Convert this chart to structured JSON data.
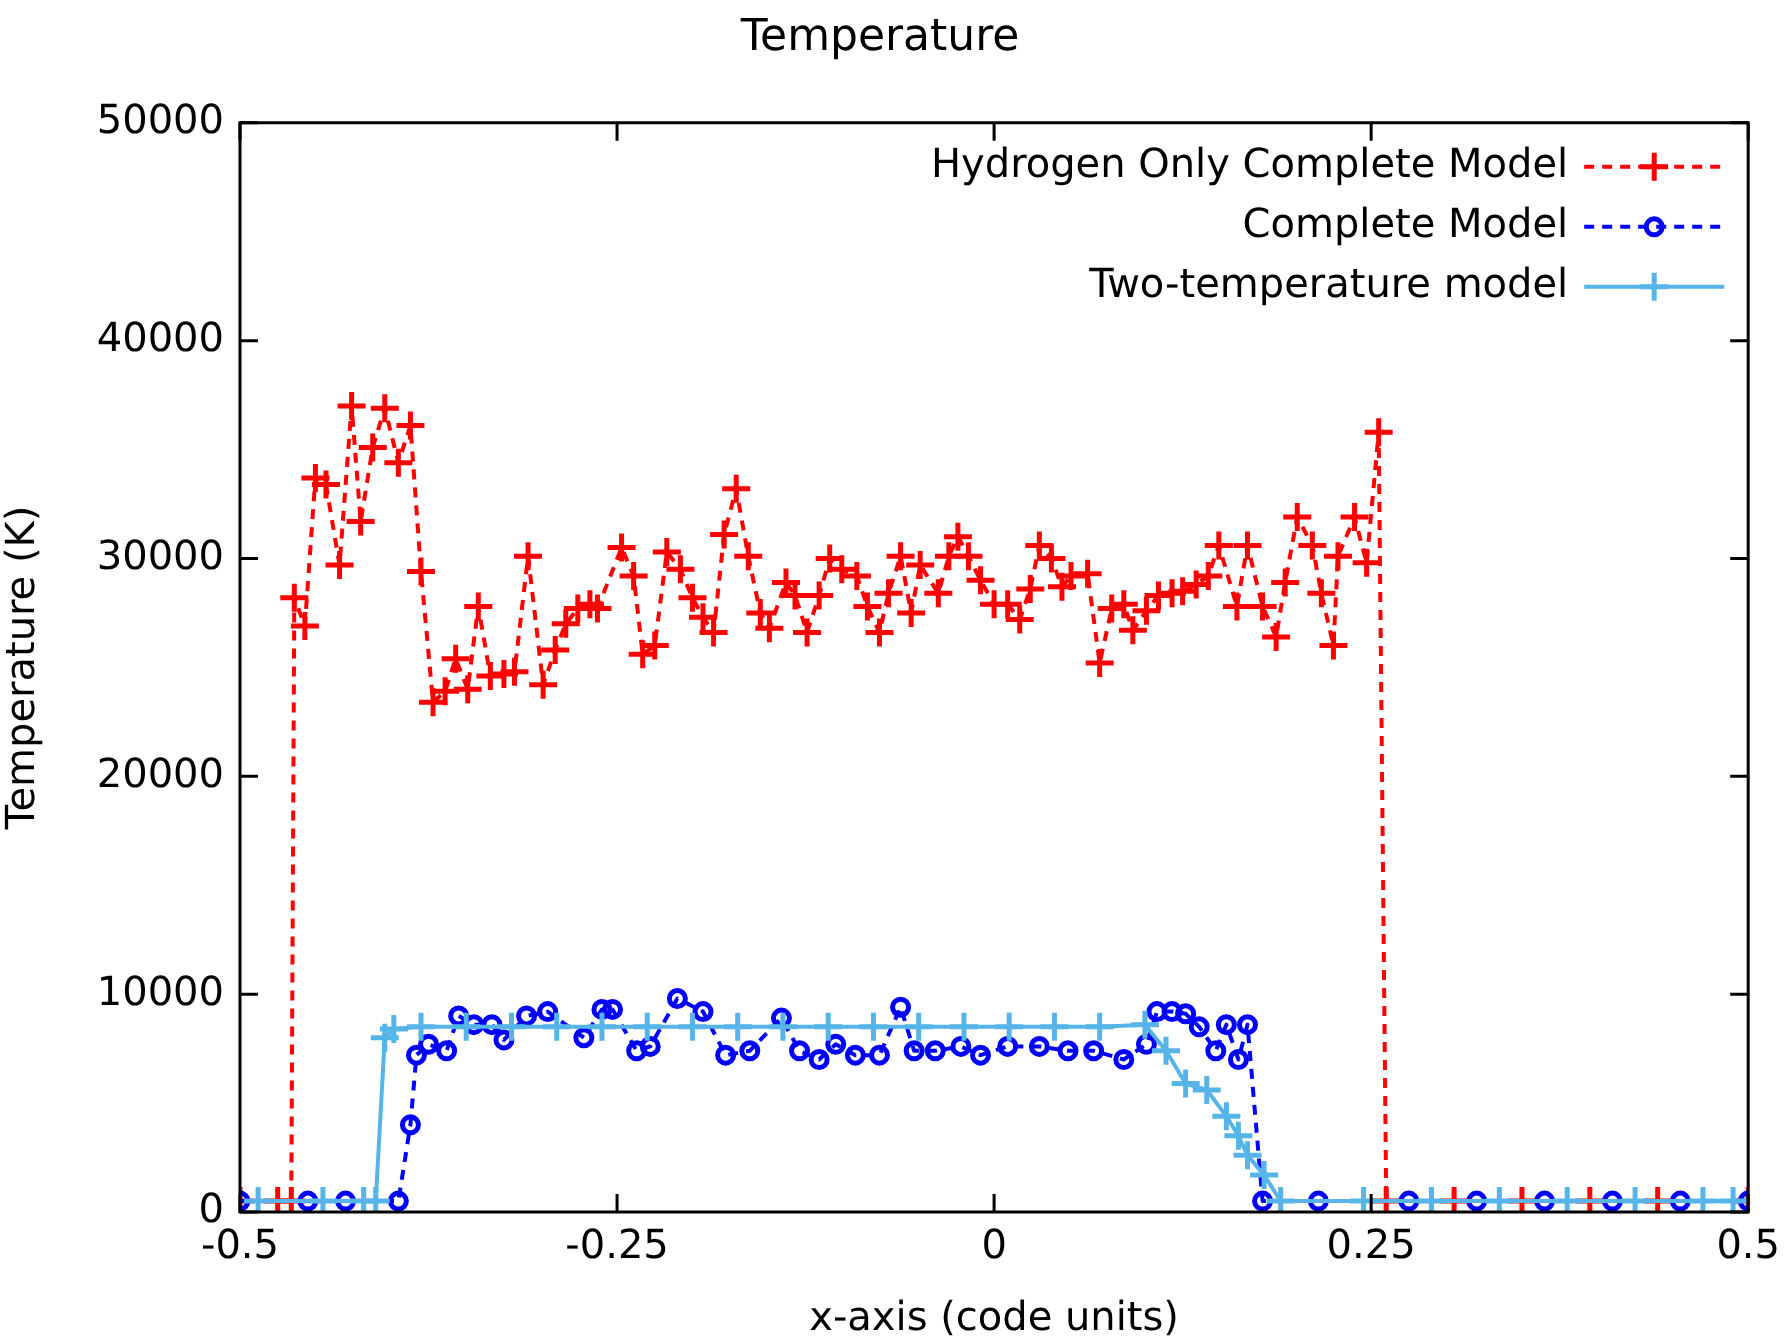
{
  "chart_data": {
    "type": "line",
    "title": "Temperature",
    "xlabel": "x-axis (code units)",
    "ylabel": "Temperature (K)",
    "xlim": [
      -0.5,
      0.5
    ],
    "xticks": [
      -0.5,
      -0.25,
      0,
      0.25,
      0.5
    ],
    "ylim": [
      0,
      50000
    ],
    "yticks": [
      0,
      10000,
      20000,
      30000,
      40000,
      50000
    ],
    "grid": false,
    "legend": "top right",
    "series": [
      {
        "name": "Hydrogen Only Complete Model",
        "color": "#ff0000",
        "marker": "cross",
        "line_style": "dashed",
        "x": [
          -0.5,
          -0.475,
          -0.466,
          -0.464,
          -0.457,
          -0.45,
          -0.443,
          -0.434,
          -0.426,
          -0.42,
          -0.412,
          -0.404,
          -0.395,
          -0.387,
          -0.38,
          -0.372,
          -0.364,
          -0.357,
          -0.349,
          -0.342,
          -0.334,
          -0.325,
          -0.318,
          -0.309,
          -0.299,
          -0.291,
          -0.284,
          -0.276,
          -0.268,
          -0.263,
          -0.247,
          -0.239,
          -0.233,
          -0.225,
          -0.217,
          -0.208,
          -0.2,
          -0.193,
          -0.186,
          -0.179,
          -0.171,
          -0.163,
          -0.155,
          -0.149,
          -0.138,
          -0.132,
          -0.124,
          -0.116,
          -0.109,
          -0.101,
          -0.091,
          -0.084,
          -0.076,
          -0.07,
          -0.062,
          -0.055,
          -0.049,
          -0.037,
          -0.03,
          -0.024,
          -0.017,
          -0.009,
          0.0,
          0.009,
          0.017,
          0.024,
          0.03,
          0.038,
          0.045,
          0.051,
          0.062,
          0.07,
          0.078,
          0.086,
          0.092,
          0.101,
          0.109,
          0.118,
          0.125,
          0.134,
          0.142,
          0.149,
          0.161,
          0.168,
          0.178,
          0.187,
          0.193,
          0.201,
          0.211,
          0.217,
          0.225,
          0.228,
          0.239,
          0.247,
          0.255,
          0.26,
          0.305,
          0.35,
          0.395,
          0.44,
          0.5
        ],
        "values": [
          500,
          500,
          500,
          28200,
          26900,
          33700,
          33400,
          29700,
          37000,
          31700,
          35100,
          36900,
          34400,
          36100,
          29400,
          23400,
          23900,
          25400,
          24000,
          27800,
          24600,
          24700,
          24800,
          30100,
          24200,
          25800,
          27000,
          27700,
          27900,
          27700,
          30500,
          29200,
          25600,
          26000,
          30300,
          29500,
          28200,
          27300,
          26600,
          31100,
          33200,
          30100,
          27500,
          26800,
          28900,
          28300,
          26600,
          28300,
          30000,
          29500,
          29200,
          27800,
          26600,
          28400,
          30100,
          27500,
          29700,
          28400,
          30100,
          31000,
          30100,
          29000,
          27900,
          27900,
          27200,
          28600,
          30600,
          30000,
          28700,
          29200,
          29300,
          25200,
          27700,
          27900,
          26700,
          27600,
          28300,
          28400,
          28500,
          28800,
          29200,
          30600,
          27800,
          30600,
          27800,
          26400,
          28900,
          31900,
          30600,
          28400,
          26000,
          30100,
          31900,
          29800,
          35800,
          500,
          500,
          500,
          500,
          500,
          500
        ]
      },
      {
        "name": "Complete Model",
        "color": "#0000ff",
        "marker": "circle",
        "line_style": "dashed",
        "x": [
          -0.5,
          -0.455,
          -0.43,
          -0.395,
          -0.387,
          -0.383,
          -0.375,
          -0.363,
          -0.355,
          -0.345,
          -0.333,
          -0.325,
          -0.31,
          -0.296,
          -0.272,
          -0.26,
          -0.253,
          -0.237,
          -0.228,
          -0.21,
          -0.193,
          -0.178,
          -0.162,
          -0.141,
          -0.129,
          -0.116,
          -0.105,
          -0.092,
          -0.076,
          -0.062,
          -0.053,
          -0.039,
          -0.022,
          -0.009,
          0.009,
          0.03,
          0.049,
          0.066,
          0.086,
          0.101,
          0.108,
          0.118,
          0.127,
          0.136,
          0.147,
          0.154,
          0.162,
          0.168,
          0.178,
          0.215,
          0.275,
          0.32,
          0.365,
          0.41,
          0.455,
          0.5
        ],
        "values": [
          500,
          500,
          500,
          500,
          4000,
          7200,
          7700,
          7400,
          9000,
          8600,
          8600,
          7900,
          9000,
          9200,
          8000,
          9300,
          9300,
          7400,
          7600,
          9800,
          9200,
          7200,
          7400,
          8900,
          7400,
          7000,
          7700,
          7200,
          7200,
          9400,
          7400,
          7400,
          7600,
          7200,
          7600,
          7600,
          7400,
          7400,
          7000,
          7700,
          9200,
          9200,
          9100,
          8500,
          7400,
          8600,
          7000,
          8600,
          500,
          500,
          500,
          500,
          500,
          500,
          500,
          500
        ]
      },
      {
        "name": "Two-temperature model",
        "color": "#56b4e9",
        "marker": "cross",
        "line_style": "solid",
        "x": [
          -0.488,
          -0.445,
          -0.418,
          -0.41,
          -0.404,
          -0.398,
          -0.38,
          -0.35,
          -0.32,
          -0.29,
          -0.26,
          -0.23,
          -0.2,
          -0.17,
          -0.14,
          -0.11,
          -0.08,
          -0.05,
          -0.02,
          0.01,
          0.04,
          0.07,
          0.1,
          0.114,
          0.127,
          0.141,
          0.154,
          0.162,
          0.168,
          0.179,
          0.19,
          0.245,
          0.29,
          0.335,
          0.38,
          0.425,
          0.47,
          0.49
        ],
        "values": [
          500,
          500,
          500,
          500,
          8000,
          8400,
          8500,
          8500,
          8500,
          8500,
          8500,
          8500,
          8500,
          8500,
          8500,
          8500,
          8500,
          8500,
          8500,
          8500,
          8500,
          8500,
          8600,
          7400,
          5900,
          5600,
          4400,
          3500,
          2600,
          1700,
          500,
          500,
          500,
          500,
          500,
          500,
          500,
          500
        ]
      }
    ]
  }
}
